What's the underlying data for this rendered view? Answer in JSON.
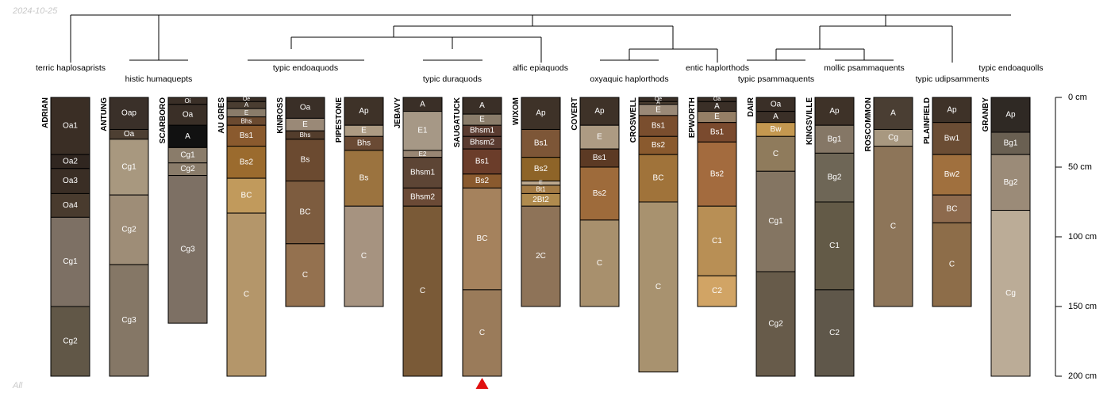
{
  "header": {
    "date": "2024-10-25",
    "footer": "All"
  },
  "depth_axis": {
    "unit": "cm",
    "max_depth": 200,
    "ticks": [
      {
        "depth": 0,
        "label": "0 cm"
      },
      {
        "depth": 50,
        "label": "50 cm"
      },
      {
        "depth": 100,
        "label": "100 cm"
      },
      {
        "depth": 150,
        "label": "150 cm"
      },
      {
        "depth": 200,
        "label": "200 cm"
      }
    ]
  },
  "selected_marker": {
    "profile": "SAUGATUCK",
    "color": "#e01010"
  },
  "taxa": [
    {
      "name": "terric haplosaprists"
    },
    {
      "name": "histic humaquepts"
    },
    {
      "name": "typic endoaquods"
    },
    {
      "name": "typic duraquods"
    },
    {
      "name": "alfic epiaquods"
    },
    {
      "name": "oxyaquic haplorthods"
    },
    {
      "name": "entic haplorthods"
    },
    {
      "name": "typic psammaquents"
    },
    {
      "name": "mollic psammaquents"
    },
    {
      "name": "typic udipsamments"
    },
    {
      "name": "typic endoaquolls"
    }
  ],
  "chart_data": {
    "type": "soil-profile-sketch",
    "profiles": [
      {
        "name": "ADRIAN",
        "horizons": [
          {
            "name": "Oa1",
            "top": 0,
            "bottom": 41,
            "color": "#3a2e25"
          },
          {
            "name": "Oa2",
            "top": 41,
            "bottom": 51,
            "color": "#302620"
          },
          {
            "name": "Oa3",
            "top": 51,
            "bottom": 69,
            "color": "#3a2e25"
          },
          {
            "name": "Oa4",
            "top": 69,
            "bottom": 86,
            "color": "#493b2e"
          },
          {
            "name": "Cg1",
            "top": 86,
            "bottom": 150,
            "color": "#7d7064"
          },
          {
            "name": "Cg2",
            "top": 150,
            "bottom": 200,
            "color": "#615747"
          }
        ]
      },
      {
        "name": "ANTUNG",
        "horizons": [
          {
            "name": "Oap",
            "top": 0,
            "bottom": 23,
            "color": "#3a3029"
          },
          {
            "name": "Oa",
            "top": 23,
            "bottom": 30,
            "color": "#4d3f32"
          },
          {
            "name": "Cg1",
            "top": 30,
            "bottom": 70,
            "color": "#a8987f"
          },
          {
            "name": "Cg2",
            "top": 70,
            "bottom": 120,
            "color": "#9e8d77"
          },
          {
            "name": "Cg3",
            "top": 120,
            "bottom": 200,
            "color": "#857766"
          }
        ]
      },
      {
        "name": "SCARBORO",
        "horizons": [
          {
            "name": "Oi",
            "top": 0,
            "bottom": 5,
            "color": "#3a2f27"
          },
          {
            "name": "Oa",
            "top": 5,
            "bottom": 20,
            "color": "#3a2f27"
          },
          {
            "name": "A",
            "top": 20,
            "bottom": 36,
            "color": "#111111"
          },
          {
            "name": "Cg1",
            "top": 36,
            "bottom": 47,
            "color": "#8a7c6a"
          },
          {
            "name": "Cg2",
            "top": 47,
            "bottom": 56,
            "color": "#8a7c6a"
          },
          {
            "name": "Cg3",
            "top": 56,
            "bottom": 162,
            "color": "#7d7064"
          }
        ]
      },
      {
        "name": "AU GRES",
        "horizons": [
          {
            "name": "Oe",
            "top": 0,
            "bottom": 3,
            "color": "#3a2f27"
          },
          {
            "name": "A",
            "top": 3,
            "bottom": 8,
            "color": "#4a3d31"
          },
          {
            "name": "E",
            "top": 8,
            "bottom": 14,
            "color": "#8a7c6a"
          },
          {
            "name": "Bhs",
            "top": 14,
            "bottom": 20,
            "color": "#6b4a30"
          },
          {
            "name": "Bs1",
            "top": 20,
            "bottom": 35,
            "color": "#8a5a2e"
          },
          {
            "name": "Bs2",
            "top": 35,
            "bottom": 58,
            "color": "#9b6b2e"
          },
          {
            "name": "BC",
            "top": 58,
            "bottom": 83,
            "color": "#c19a5c"
          },
          {
            "name": "C",
            "top": 83,
            "bottom": 200,
            "color": "#b4966a"
          }
        ]
      },
      {
        "name": "KINROSS",
        "horizons": [
          {
            "name": "Oa",
            "top": 0,
            "bottom": 15,
            "color": "#3a2f27"
          },
          {
            "name": "E",
            "top": 15,
            "bottom": 24,
            "color": "#9a8977"
          },
          {
            "name": "Bhs",
            "top": 24,
            "bottom": 30,
            "color": "#533d2c"
          },
          {
            "name": "Bs",
            "top": 30,
            "bottom": 60,
            "color": "#6b4a30"
          },
          {
            "name": "BC",
            "top": 60,
            "bottom": 105,
            "color": "#7d5c3f"
          },
          {
            "name": "C",
            "top": 105,
            "bottom": 150,
            "color": "#94714f"
          }
        ]
      },
      {
        "name": "PIPESTONE",
        "horizons": [
          {
            "name": "Ap",
            "top": 0,
            "bottom": 20,
            "color": "#3e3228"
          },
          {
            "name": "E",
            "top": 20,
            "bottom": 28,
            "color": "#ad9b83"
          },
          {
            "name": "Bhs",
            "top": 28,
            "bottom": 38,
            "color": "#6a4a34"
          },
          {
            "name": "Bs",
            "top": 38,
            "bottom": 78,
            "color": "#9b733f"
          },
          {
            "name": "C",
            "top": 78,
            "bottom": 150,
            "color": "#a69380"
          }
        ]
      },
      {
        "name": "JEBAVY",
        "horizons": [
          {
            "name": "A",
            "top": 0,
            "bottom": 10,
            "color": "#3a2f27"
          },
          {
            "name": "E1",
            "top": 10,
            "bottom": 38,
            "color": "#a69886"
          },
          {
            "name": "E2",
            "top": 38,
            "bottom": 43,
            "color": "#998673"
          },
          {
            "name": "Bhsm1",
            "top": 43,
            "bottom": 65,
            "color": "#5d4535"
          },
          {
            "name": "Bhsm2",
            "top": 65,
            "bottom": 78,
            "color": "#6b4a36"
          },
          {
            "name": "C",
            "top": 78,
            "bottom": 200,
            "color": "#7a5a37"
          }
        ]
      },
      {
        "name": "SAUGATUCK",
        "horizons": [
          {
            "name": "A",
            "top": 0,
            "bottom": 12,
            "color": "#3a2f27"
          },
          {
            "name": "E",
            "top": 12,
            "bottom": 20,
            "color": "#8a7c6a"
          },
          {
            "name": "Bhsm1",
            "top": 20,
            "bottom": 28,
            "color": "#5a3b30"
          },
          {
            "name": "Bhsm2",
            "top": 28,
            "bottom": 37,
            "color": "#5a3b30"
          },
          {
            "name": "Bs1",
            "top": 37,
            "bottom": 55,
            "color": "#6b3d2a"
          },
          {
            "name": "Bs2",
            "top": 55,
            "bottom": 65,
            "color": "#8a5a2e"
          },
          {
            "name": "BC",
            "top": 65,
            "bottom": 138,
            "color": "#a5825d"
          },
          {
            "name": "C",
            "top": 138,
            "bottom": 200,
            "color": "#9a7b5a"
          }
        ]
      },
      {
        "name": "WIXOM",
        "horizons": [
          {
            "name": "Ap",
            "top": 0,
            "bottom": 23,
            "color": "#3e3228"
          },
          {
            "name": "Bs1",
            "top": 23,
            "bottom": 43,
            "color": "#7d5637"
          },
          {
            "name": "Bs2",
            "top": 43,
            "bottom": 60,
            "color": "#8e6428"
          },
          {
            "name": "E",
            "top": 60,
            "bottom": 63,
            "color": "#bda98e"
          },
          {
            "name": "Bt1",
            "top": 63,
            "bottom": 69,
            "color": "#a37b45"
          },
          {
            "name": "2Bt2",
            "top": 69,
            "bottom": 78,
            "color": "#b08b4e"
          },
          {
            "name": "2C",
            "top": 78,
            "bottom": 150,
            "color": "#8e7358"
          }
        ]
      },
      {
        "name": "COVERT",
        "horizons": [
          {
            "name": "Ap",
            "top": 0,
            "bottom": 20,
            "color": "#3e3228"
          },
          {
            "name": "E",
            "top": 20,
            "bottom": 37,
            "color": "#ad9b83"
          },
          {
            "name": "Bs1",
            "top": 37,
            "bottom": 50,
            "color": "#5c3a24"
          },
          {
            "name": "Bs2",
            "top": 50,
            "bottom": 88,
            "color": "#9e6b3b"
          },
          {
            "name": "C",
            "top": 88,
            "bottom": 150,
            "color": "#a8906d"
          }
        ]
      },
      {
        "name": "CROSWELL",
        "horizons": [
          {
            "name": "Oe",
            "top": 0,
            "bottom": 3,
            "color": "#3a2f27"
          },
          {
            "name": "A",
            "top": 3,
            "bottom": 5,
            "color": "#4a3d31"
          },
          {
            "name": "E",
            "top": 5,
            "bottom": 13,
            "color": "#9a8977"
          },
          {
            "name": "Bs1",
            "top": 13,
            "bottom": 28,
            "color": "#7a4e2e"
          },
          {
            "name": "Bs2",
            "top": 28,
            "bottom": 41,
            "color": "#8a5a2e"
          },
          {
            "name": "BC",
            "top": 41,
            "bottom": 75,
            "color": "#a0733a"
          },
          {
            "name": "C",
            "top": 75,
            "bottom": 197,
            "color": "#a8926f"
          }
        ]
      },
      {
        "name": "EPWORTH",
        "horizons": [
          {
            "name": "Oa",
            "top": 0,
            "bottom": 3,
            "color": "#3a2f27"
          },
          {
            "name": "A",
            "top": 3,
            "bottom": 10,
            "color": "#3a2f27"
          },
          {
            "name": "E",
            "top": 10,
            "bottom": 18,
            "color": "#957f66"
          },
          {
            "name": "Bs1",
            "top": 18,
            "bottom": 32,
            "color": "#7a4a2e"
          },
          {
            "name": "Bs2",
            "top": 32,
            "bottom": 78,
            "color": "#a36b3e"
          },
          {
            "name": "C1",
            "top": 78,
            "bottom": 128,
            "color": "#b88f55"
          },
          {
            "name": "C2",
            "top": 128,
            "bottom": 150,
            "color": "#d1a465"
          }
        ]
      },
      {
        "name": "DAIR",
        "horizons": [
          {
            "name": "Oa",
            "top": 0,
            "bottom": 10,
            "color": "#3a2f27"
          },
          {
            "name": "A",
            "top": 10,
            "bottom": 18,
            "color": "#3a2f27"
          },
          {
            "name": "Bw",
            "top": 18,
            "bottom": 28,
            "color": "#c49850"
          },
          {
            "name": "C",
            "top": 28,
            "bottom": 53,
            "color": "#8f7b5c"
          },
          {
            "name": "Cg1",
            "top": 53,
            "bottom": 125,
            "color": "#847562"
          },
          {
            "name": "Cg2",
            "top": 125,
            "bottom": 200,
            "color": "#675b4a"
          }
        ]
      },
      {
        "name": "KINGSVILLE",
        "horizons": [
          {
            "name": "Ap",
            "top": 0,
            "bottom": 20,
            "color": "#3e3228"
          },
          {
            "name": "Bg1",
            "top": 20,
            "bottom": 40,
            "color": "#857766"
          },
          {
            "name": "Bg2",
            "top": 40,
            "bottom": 75,
            "color": "#6e6656"
          },
          {
            "name": "C1",
            "top": 75,
            "bottom": 138,
            "color": "#635a47"
          },
          {
            "name": "C2",
            "top": 138,
            "bottom": 200,
            "color": "#5f574a"
          }
        ]
      },
      {
        "name": "ROSCOMMON",
        "horizons": [
          {
            "name": "A",
            "top": 0,
            "bottom": 23,
            "color": "#4a3e33"
          },
          {
            "name": "Cg",
            "top": 23,
            "bottom": 35,
            "color": "#a89880"
          },
          {
            "name": "C",
            "top": 35,
            "bottom": 150,
            "color": "#8d7559"
          }
        ]
      },
      {
        "name": "PLAINFIELD",
        "horizons": [
          {
            "name": "Ap",
            "top": 0,
            "bottom": 18,
            "color": "#3e3228"
          },
          {
            "name": "Bw1",
            "top": 18,
            "bottom": 41,
            "color": "#6b4d34"
          },
          {
            "name": "Bw2",
            "top": 41,
            "bottom": 70,
            "color": "#a0703e"
          },
          {
            "name": "BC",
            "top": 70,
            "bottom": 90,
            "color": "#8d6a4d"
          },
          {
            "name": "C",
            "top": 90,
            "bottom": 150,
            "color": "#8d6d49"
          }
        ]
      },
      {
        "name": "GRANBY",
        "horizons": [
          {
            "name": "Ap",
            "top": 0,
            "bottom": 25,
            "color": "#2f2924"
          },
          {
            "name": "Bg1",
            "top": 25,
            "bottom": 41,
            "color": "#6a6052"
          },
          {
            "name": "Bg2",
            "top": 41,
            "bottom": 81,
            "color": "#9b8b78"
          },
          {
            "name": "Cg",
            "top": 81,
            "bottom": 200,
            "color": "#bbac97"
          }
        ]
      }
    ]
  }
}
